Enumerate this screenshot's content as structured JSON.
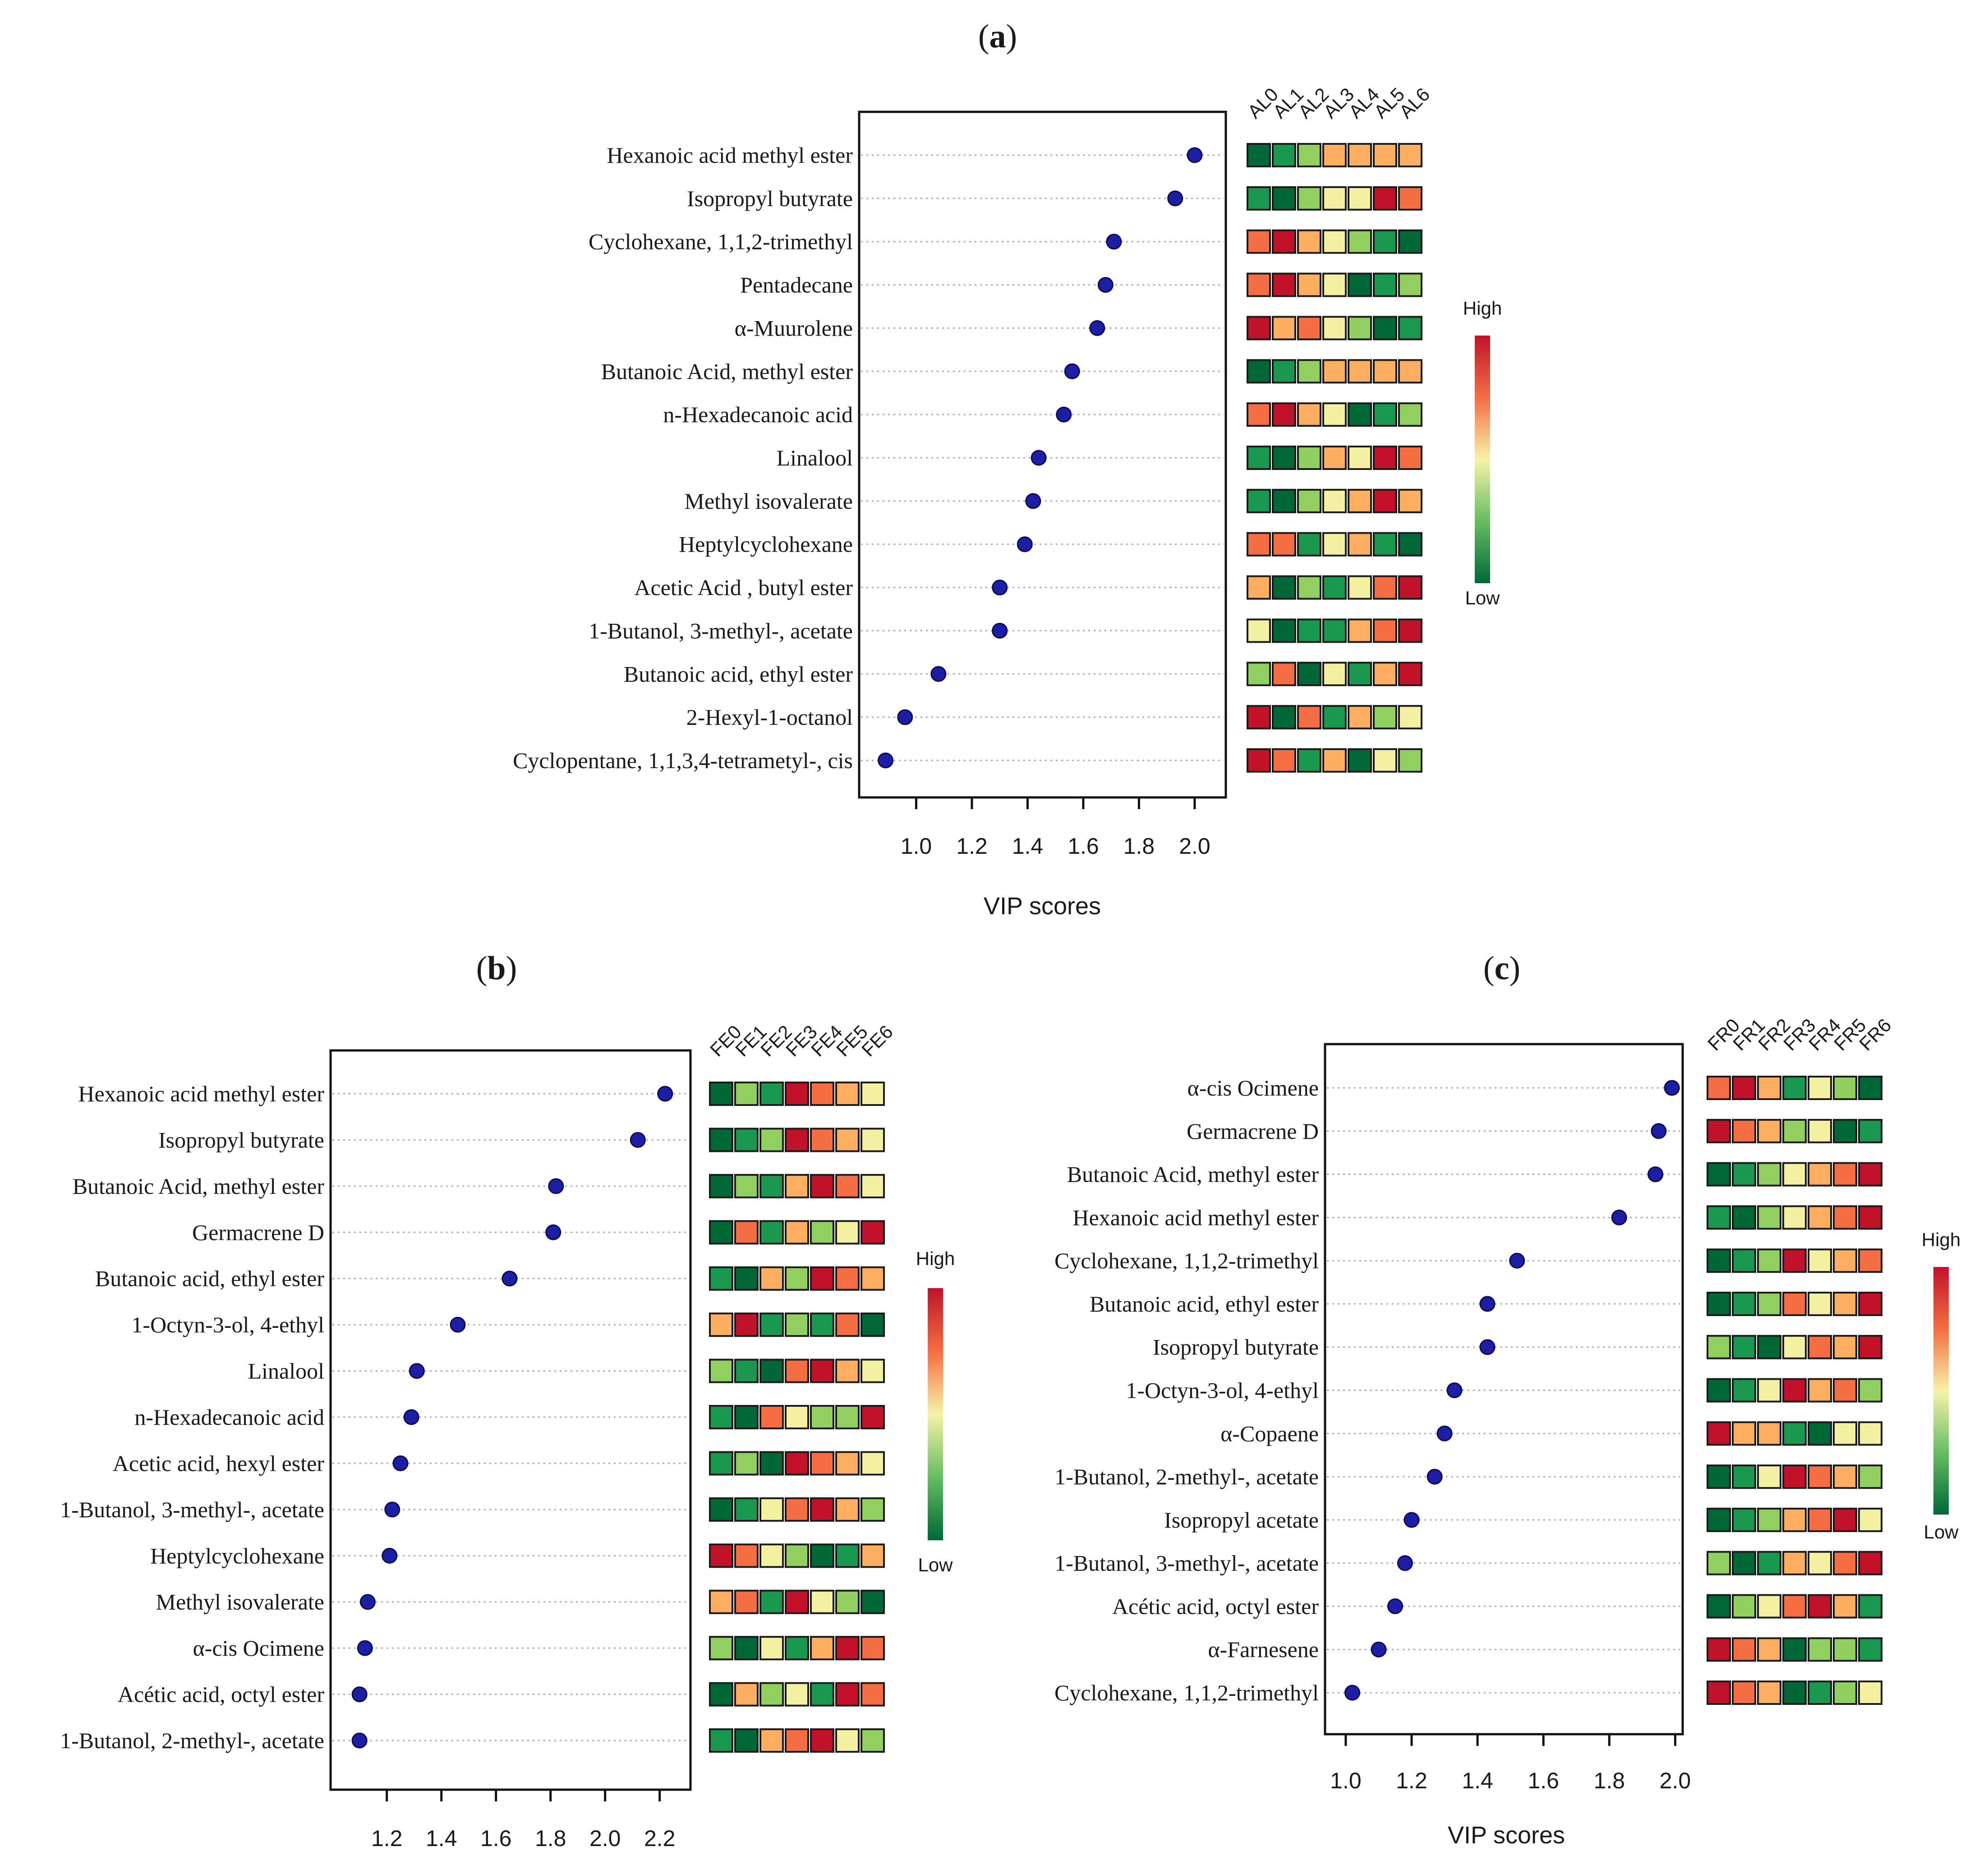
{
  "panels": [
    {
      "label": "(a)",
      "label_letter": "a",
      "xlabel": "VIP scores",
      "scale_high": "High",
      "scale_low": "Low",
      "chart_data": {
        "type": "scatter",
        "xlabel": "VIP scores",
        "xlim": [
          0.86,
          2.06
        ],
        "xticks": [
          1.0,
          1.2,
          1.4,
          1.6,
          1.8,
          2.0
        ],
        "grid": "horizontal dotted",
        "samples": [
          "AL0",
          "AL1",
          "AL2",
          "AL3",
          "AL4",
          "AL5",
          "AL6"
        ],
        "compounds": [
          "Hexanoic acid methyl ester",
          "Isopropyl butyrate",
          "Cyclohexane, 1,1,2-trimethyl",
          "Pentadecane",
          "α-Muurolene",
          "Butanoic Acid, methyl ester",
          "n-Hexadecanoic acid",
          "Linalool",
          "Methyl isovalerate",
          "Heptylcyclohexane",
          "Acetic Acid , butyl ester",
          "1-Butanol, 3-methyl-, acetate",
          "Butanoic acid, ethyl ester",
          "2-Hexyl-1-octanol",
          "Cyclopentane, 1,1,3,4-tetrametyl-, cis"
        ],
        "vip": [
          2.0,
          1.93,
          1.71,
          1.68,
          1.65,
          1.56,
          1.53,
          1.44,
          1.42,
          1.39,
          1.3,
          1.3,
          1.08,
          0.96,
          0.89
        ],
        "heatmap": [
          [
            1,
            2,
            3,
            5,
            5,
            5,
            5
          ],
          [
            2,
            1,
            3,
            4,
            4,
            7,
            6
          ],
          [
            6,
            7,
            5,
            4,
            3,
            2,
            1
          ],
          [
            6,
            7,
            5,
            4,
            1,
            2,
            3
          ],
          [
            7,
            5,
            6,
            4,
            3,
            1,
            2
          ],
          [
            1,
            2,
            3,
            5,
            5,
            5,
            5
          ],
          [
            6,
            7,
            5,
            4,
            1,
            2,
            3
          ],
          [
            2,
            1,
            3,
            5,
            4,
            7,
            6
          ],
          [
            2,
            1,
            3,
            4,
            5,
            7,
            5
          ],
          [
            6,
            6,
            2,
            4,
            5,
            2,
            1
          ],
          [
            5,
            1,
            3,
            2,
            4,
            6,
            7
          ],
          [
            4,
            1,
            2,
            2,
            5,
            6,
            7
          ],
          [
            3,
            6,
            1,
            4,
            2,
            5,
            7
          ],
          [
            7,
            1,
            6,
            2,
            5,
            3,
            4
          ],
          [
            7,
            6,
            2,
            5,
            1,
            4,
            3
          ]
        ]
      }
    },
    {
      "label": "(b)",
      "label_letter": "b",
      "xlabel": "",
      "scale_high": "High",
      "scale_low": "Low",
      "chart_data": {
        "type": "scatter",
        "xlabel": "",
        "xlim": [
          1.06,
          2.26
        ],
        "xticks": [
          1.2,
          1.4,
          1.6,
          1.8,
          2.0,
          2.2
        ],
        "grid": "horizontal dotted",
        "samples": [
          "FE0",
          "FE1",
          "FE2",
          "FE3",
          "FE4",
          "FE5",
          "FE6"
        ],
        "compounds": [
          "Hexanoic acid methyl ester",
          "Isopropyl butyrate",
          "Butanoic Acid, methyl ester",
          "Germacrene D",
          "Butanoic acid, ethyl ester",
          "1-Octyn-3-ol, 4-ethyl",
          "Linalool",
          "n-Hexadecanoic acid",
          "Acetic acid, hexyl ester",
          "1-Butanol, 3-methyl-, acetate",
          "Heptylcyclohexane",
          "Methyl isovalerate",
          "α-cis Ocimene",
          "Acétic acid, octyl ester",
          "1-Butanol, 2-methyl-, acetate"
        ],
        "vip": [
          2.22,
          2.12,
          1.82,
          1.81,
          1.65,
          1.46,
          1.31,
          1.29,
          1.25,
          1.22,
          1.21,
          1.13,
          1.12,
          1.1,
          1.1
        ],
        "heatmap": [
          [
            1,
            3,
            2,
            7,
            6,
            5,
            4
          ],
          [
            1,
            2,
            3,
            7,
            6,
            5,
            4
          ],
          [
            1,
            3,
            2,
            5,
            7,
            6,
            4
          ],
          [
            1,
            6,
            2,
            5,
            3,
            4,
            7
          ],
          [
            2,
            1,
            5,
            3,
            7,
            6,
            5
          ],
          [
            5,
            7,
            2,
            3,
            2,
            6,
            1
          ],
          [
            3,
            2,
            1,
            6,
            7,
            5,
            4
          ],
          [
            2,
            1,
            6,
            4,
            3,
            3,
            7
          ],
          [
            2,
            3,
            1,
            7,
            6,
            5,
            4
          ],
          [
            1,
            2,
            4,
            6,
            7,
            5,
            3
          ],
          [
            7,
            6,
            4,
            3,
            1,
            2,
            5
          ],
          [
            5,
            6,
            2,
            7,
            4,
            3,
            1
          ],
          [
            3,
            1,
            4,
            2,
            5,
            7,
            6
          ],
          [
            1,
            5,
            3,
            4,
            2,
            7,
            6
          ],
          [
            2,
            1,
            5,
            6,
            7,
            4,
            3
          ]
        ]
      }
    },
    {
      "label": "(c)",
      "label_letter": "c",
      "xlabel": "VIP scores",
      "scale_high": "High",
      "scale_low": "Low",
      "chart_data": {
        "type": "scatter",
        "xlabel": "VIP scores",
        "xlim": [
          0.97,
          2.02
        ],
        "xticks": [
          1.0,
          1.2,
          1.4,
          1.6,
          1.8,
          2.0
        ],
        "grid": "horizontal dotted",
        "samples": [
          "FR0",
          "FR1",
          "FR2",
          "FR3",
          "FR4",
          "FR5",
          "FR6"
        ],
        "compounds": [
          "α-cis Ocimene",
          "Germacrene D",
          "Butanoic Acid, methyl ester",
          "Hexanoic acid methyl ester",
          "Cyclohexane, 1,1,2-trimethyl",
          "Butanoic acid, ethyl ester",
          "Isopropyl butyrate",
          "1-Octyn-3-ol, 4-ethyl",
          "α-Copaene",
          "1-Butanol, 2-methyl-, acetate",
          "Isopropyl acetate",
          "1-Butanol, 3-methyl-, acetate",
          "Acétic acid, octyl ester",
          "α-Farnesene",
          "Cyclohexane, 1,1,2-trimethyl"
        ],
        "vip": [
          1.99,
          1.95,
          1.94,
          1.83,
          1.52,
          1.43,
          1.43,
          1.33,
          1.3,
          1.27,
          1.2,
          1.18,
          1.15,
          1.1,
          1.02
        ],
        "heatmap": [
          [
            6,
            7,
            5,
            2,
            4,
            3,
            1
          ],
          [
            7,
            6,
            5,
            3,
            4,
            1,
            2
          ],
          [
            1,
            2,
            3,
            4,
            5,
            6,
            7
          ],
          [
            2,
            1,
            3,
            4,
            5,
            6,
            7
          ],
          [
            1,
            2,
            3,
            7,
            4,
            5,
            6
          ],
          [
            1,
            2,
            3,
            6,
            4,
            5,
            7
          ],
          [
            3,
            2,
            1,
            4,
            6,
            5,
            7
          ],
          [
            1,
            2,
            4,
            7,
            5,
            6,
            3
          ],
          [
            7,
            5,
            5,
            2,
            1,
            4,
            4
          ],
          [
            1,
            2,
            4,
            7,
            6,
            5,
            3
          ],
          [
            1,
            2,
            3,
            5,
            6,
            7,
            4
          ],
          [
            3,
            1,
            2,
            5,
            4,
            6,
            7
          ],
          [
            1,
            3,
            4,
            6,
            7,
            5,
            2
          ],
          [
            7,
            6,
            5,
            1,
            3,
            3,
            2
          ],
          [
            7,
            6,
            5,
            1,
            2,
            3,
            4
          ]
        ]
      }
    }
  ],
  "colors": {
    "level_1": "#006837",
    "level_2": "#1a9850",
    "level_3": "#91cf60",
    "level_4": "#f3f0a2",
    "level_5": "#fdae61",
    "level_6": "#f46d43",
    "level_7": "#c0132a",
    "marker": "#1c1fa3",
    "grid": "#aaaaaa",
    "axis": "#111111"
  }
}
